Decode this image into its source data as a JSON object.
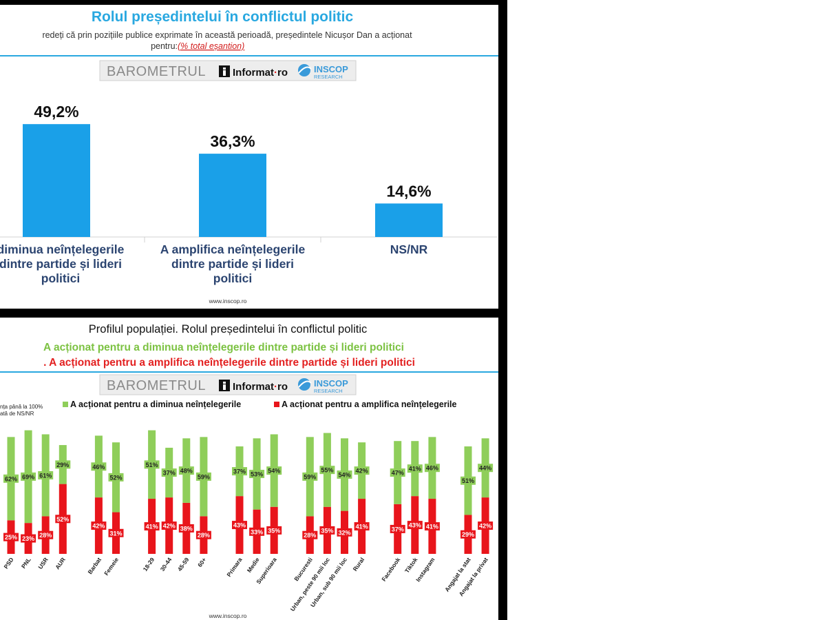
{
  "brand": {
    "barometrul": "BAROMETRUL",
    "informat": "Informat",
    "informat_dot": "·",
    "informat_ro": "ro",
    "inscop": "INSCOP",
    "research": "RESEARCH",
    "website": "www.inscop.ro"
  },
  "slide1": {
    "title": "Rolul președintelui în conflictul politic",
    "question_line1": "redeți că prin pozițiile publice exprimate în această perioadă, președintele Nicușor Dan a acționat",
    "question_line2_prefix": "pentru: ",
    "question_line2_link": "(% total eșantion)"
  },
  "slide2": {
    "title": "Profilul populației. Rolul președintelui în conflictul politic",
    "line_green": "A acționat pentru a diminua neînțelegerile dintre partide și lideri politici",
    "line_red": ". A acționat pentru a amplifica neînțelegerile dintre partide și lideri politici",
    "note_line1": "nța până la 100%",
    "note_line2": "ată de NS/NR"
  },
  "colors": {
    "title_blue": "#29a8e0",
    "bar_blue": "#1aa0e8",
    "label_navy": "#2b4470",
    "green": "#8fce5a",
    "green_text": "#7cc242",
    "red": "#e8151b",
    "red_text": "#e32121",
    "divider": "#29a8e0"
  },
  "chart_data": [
    {
      "type": "bar",
      "categories": [
        [
          "diminua neînțelegerile",
          "dintre partide și lideri",
          "politici"
        ],
        [
          "A amplifica neînțelegerile",
          "dintre partide și lideri",
          "politici"
        ],
        [
          "NS/NR"
        ]
      ],
      "values": [
        49.2,
        36.3,
        14.6
      ],
      "value_labels": [
        "49,2%",
        "36,3%",
        "14,6%"
      ]
    },
    {
      "type": "bar",
      "stacked": true,
      "legend": "top",
      "series": [
        {
          "name": "A acționat pentru a amplifica neînțelegerile",
          "values": [
            25,
            23,
            28,
            52,
            42,
            31,
            41,
            42,
            38,
            28,
            43,
            33,
            35,
            28,
            35,
            32,
            41,
            37,
            43,
            41,
            29,
            42
          ]
        },
        {
          "name": "A acționat pentru a diminua neînțelegerile",
          "values": [
            62,
            69,
            61,
            29,
            46,
            52,
            51,
            37,
            48,
            59,
            37,
            53,
            54,
            59,
            55,
            54,
            42,
            47,
            41,
            46,
            51,
            44
          ]
        }
      ],
      "categories": [
        "PSD",
        "PNL",
        "USR",
        "AUR",
        "Barbat",
        "Femeie",
        "18-29",
        "30-44",
        "45-59",
        "60+",
        "Primara",
        "Medie",
        "Superioara",
        "Bucuresti",
        "Urban, peste 90 mii loc",
        "Urban, sub 90 mii loc",
        "Rural",
        "Facebook",
        "Tiktok",
        "Instagram",
        "Angajat la stat",
        "Angajat la privat"
      ],
      "groups": [
        [
          0,
          4
        ],
        [
          4,
          6
        ],
        [
          6,
          10
        ],
        [
          10,
          13
        ],
        [
          13,
          17
        ],
        [
          17,
          20
        ],
        [
          20,
          22
        ]
      ],
      "ylim": [
        0,
        100
      ]
    }
  ]
}
